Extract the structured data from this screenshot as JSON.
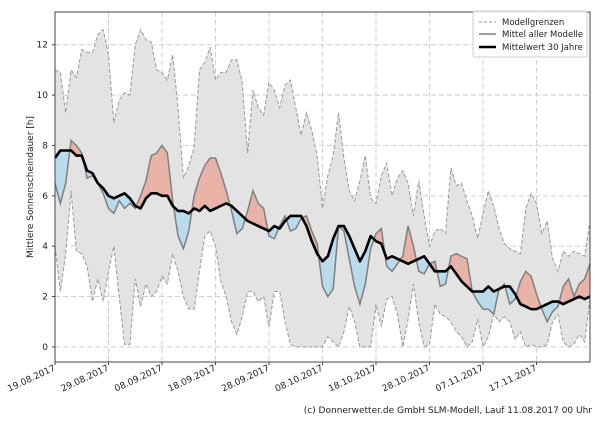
{
  "chart_data": {
    "type": "line",
    "title": "",
    "ylabel": "Mittlere Sonnenscheindauer [h]",
    "xlabel": "",
    "ylim": [
      -0.6,
      13.3
    ],
    "yticks": [
      0,
      2,
      4,
      6,
      8,
      10,
      12
    ],
    "grid": true,
    "legend_position": "top-right",
    "x_start": "19.08.2017",
    "x_days": 100,
    "xtick_labels": [
      "19.08.2017",
      "29.08.2017",
      "08.09.2017",
      "18.09.2017",
      "28.09.2017",
      "08.10.2017",
      "18.10.2017",
      "28.10.2017",
      "07.11.2017",
      "17.11.2017"
    ],
    "xtick_days": [
      0,
      10,
      20,
      30,
      40,
      50,
      60,
      70,
      80,
      90
    ],
    "legend": [
      {
        "key": "bounds",
        "label": "Modellgrenzen"
      },
      {
        "key": "model_mean",
        "label": "Mittel aller Modelle"
      },
      {
        "key": "climate_mean",
        "label": "Mittelwert 30 Jahre"
      }
    ],
    "series": [
      {
        "name": "Modellgrenzen oben",
        "days": [
          0,
          1,
          2,
          3,
          4,
          5,
          6,
          7,
          8,
          9,
          10,
          11,
          12,
          13,
          14,
          15,
          16,
          17,
          18,
          19,
          20,
          21,
          22,
          23,
          24,
          25,
          26,
          27,
          28,
          29,
          30,
          31,
          32,
          33,
          34,
          35,
          36,
          37,
          38,
          39,
          40,
          41,
          42,
          43,
          44,
          45,
          46,
          47,
          48,
          49,
          50,
          51,
          52,
          53,
          54,
          55,
          56,
          57,
          58,
          59,
          60,
          61,
          62,
          63,
          64,
          65,
          66,
          67,
          68,
          69,
          70,
          71,
          72,
          73,
          74,
          75,
          76,
          77,
          78,
          79,
          80,
          81,
          82,
          83,
          84,
          85,
          86,
          87,
          88,
          89,
          90,
          91,
          92,
          93,
          94,
          95,
          96,
          97,
          98,
          99,
          100
        ],
        "values": [
          11.0,
          10.9,
          9.3,
          11.0,
          10.7,
          11.8,
          11.7,
          11.7,
          12.4,
          12.6,
          11.6,
          8.9,
          9.8,
          10.1,
          10.0,
          12.0,
          12.6,
          12.2,
          12.1,
          11.0,
          10.9,
          10.6,
          11.6,
          9.5,
          6.7,
          7.2,
          7.9,
          11.0,
          11.3,
          11.9,
          10.6,
          10.9,
          10.9,
          11.4,
          11.4,
          10.5,
          7.7,
          10.2,
          9.5,
          9.2,
          10.5,
          10.2,
          9.5,
          10.4,
          10.6,
          9.5,
          8.4,
          9.3,
          8.6,
          7.6,
          5.5,
          6.8,
          7.6,
          9.3,
          7.5,
          6.2,
          5.8,
          6.6,
          7.6,
          5.9,
          5.7,
          6.8,
          7.3,
          6.0,
          6.7,
          7.0,
          6.5,
          5.2,
          6.6,
          5.2,
          4.0,
          4.6,
          4.7,
          4.5,
          7.1,
          6.4,
          6.5,
          5.8,
          5.2,
          4.3,
          5.3,
          6.2,
          5.6,
          4.7,
          4.1,
          3.9,
          3.8,
          3.7,
          5.5,
          6.1,
          5.7,
          4.5,
          5.0,
          3.5,
          3.0,
          3.8,
          3.6,
          3.8,
          3.7,
          3.6,
          5.0
        ]
      },
      {
        "name": "Modellgrenzen unten",
        "days": [
          0,
          1,
          2,
          3,
          4,
          5,
          6,
          7,
          8,
          9,
          10,
          11,
          12,
          13,
          14,
          15,
          16,
          17,
          18,
          19,
          20,
          21,
          22,
          23,
          24,
          25,
          26,
          27,
          28,
          29,
          30,
          31,
          32,
          33,
          34,
          35,
          36,
          37,
          38,
          39,
          40,
          41,
          42,
          43,
          44,
          45,
          46,
          47,
          48,
          49,
          50,
          51,
          52,
          53,
          54,
          55,
          56,
          57,
          58,
          59,
          60,
          61,
          62,
          63,
          64,
          65,
          66,
          67,
          68,
          69,
          70,
          71,
          72,
          73,
          74,
          75,
          76,
          77,
          78,
          79,
          80,
          81,
          82,
          83,
          84,
          85,
          86,
          87,
          88,
          89,
          90,
          91,
          92,
          93,
          94,
          95,
          96,
          97,
          98,
          99,
          100
        ],
        "values": [
          4.0,
          2.2,
          3.7,
          6.2,
          3.8,
          3.7,
          3.2,
          1.8,
          2.7,
          1.8,
          3.0,
          4.0,
          2.0,
          0.1,
          0.1,
          2.7,
          1.6,
          2.5,
          2.0,
          2.2,
          2.8,
          2.5,
          3.7,
          3.0,
          2.0,
          1.5,
          1.5,
          3.0,
          4.4,
          4.6,
          4.0,
          2.6,
          2.0,
          1.0,
          0.5,
          1.2,
          2.2,
          2.2,
          1.8,
          2.0,
          0.8,
          2.2,
          2.2,
          1.0,
          0.1,
          0.0,
          0.0,
          0.0,
          0.0,
          0.0,
          0.0,
          0.4,
          0.2,
          0.0,
          0.6,
          1.6,
          1.0,
          0.0,
          0.0,
          0.0,
          1.7,
          0.8,
          1.9,
          2.0,
          1.3,
          0.0,
          1.1,
          2.5,
          1.0,
          0.0,
          0.1,
          1.7,
          1.3,
          1.2,
          1.0,
          0.6,
          0.4,
          0.0,
          0.2,
          1.1,
          0.0,
          0.4,
          1.3,
          1.0,
          1.2,
          1.0,
          0.3,
          0.6,
          0.0,
          0.1,
          0.0,
          0.0,
          0.1,
          1.0,
          1.3,
          0.2,
          0.0,
          0.1,
          0.5,
          0.2,
          1.9
        ]
      },
      {
        "name": "Mittel aller Modelle",
        "days": [
          0,
          1,
          2,
          3,
          4,
          5,
          6,
          7,
          8,
          9,
          10,
          11,
          12,
          13,
          14,
          15,
          16,
          17,
          18,
          19,
          20,
          21,
          22,
          23,
          24,
          25,
          26,
          27,
          28,
          29,
          30,
          31,
          32,
          33,
          34,
          35,
          36,
          37,
          38,
          39,
          40,
          41,
          42,
          43,
          44,
          45,
          46,
          47,
          48,
          49,
          50,
          51,
          52,
          53,
          54,
          55,
          56,
          57,
          58,
          59,
          60,
          61,
          62,
          63,
          64,
          65,
          66,
          67,
          68,
          69,
          70,
          71,
          72,
          73,
          74,
          75,
          76,
          77,
          78,
          79,
          80,
          81,
          82,
          83,
          84,
          85,
          86,
          87,
          88,
          89,
          90,
          91,
          92,
          93,
          94,
          95,
          96,
          97,
          98,
          99,
          100
        ],
        "values": [
          6.5,
          5.7,
          6.5,
          8.2,
          8.0,
          7.7,
          6.7,
          6.8,
          6.5,
          6.1,
          5.5,
          5.3,
          5.8,
          5.5,
          5.7,
          5.5,
          6.0,
          6.6,
          7.6,
          7.7,
          8.0,
          7.7,
          5.8,
          4.4,
          3.9,
          4.6,
          6.0,
          6.7,
          7.2,
          7.5,
          7.5,
          6.9,
          6.2,
          5.4,
          4.5,
          4.7,
          5.4,
          6.2,
          5.7,
          5.5,
          4.4,
          4.3,
          4.8,
          5.2,
          4.6,
          4.7,
          5.1,
          5.2,
          4.6,
          4.1,
          2.4,
          2.0,
          2.3,
          4.8,
          4.6,
          3.5,
          2.4,
          1.7,
          2.5,
          3.9,
          4.5,
          4.7,
          3.2,
          3.0,
          3.3,
          3.6,
          4.8,
          4.0,
          3.0,
          2.9,
          3.3,
          3.4,
          2.4,
          2.5,
          3.6,
          3.7,
          3.6,
          3.5,
          2.2,
          1.8,
          1.5,
          1.5,
          1.3,
          2.3,
          2.5,
          1.7,
          1.9,
          2.6,
          3.0,
          2.8,
          2.1,
          1.5,
          1.0,
          1.4,
          1.6,
          2.4,
          2.7,
          2.0,
          2.5,
          2.7,
          3.3
        ]
      },
      {
        "name": "Mittelwert 30 Jahre",
        "days": [
          0,
          1,
          2,
          3,
          4,
          5,
          6,
          7,
          8,
          9,
          10,
          11,
          12,
          13,
          14,
          15,
          16,
          17,
          18,
          19,
          20,
          21,
          22,
          23,
          24,
          25,
          26,
          27,
          28,
          29,
          30,
          31,
          32,
          33,
          34,
          35,
          36,
          37,
          38,
          39,
          40,
          41,
          42,
          43,
          44,
          45,
          46,
          47,
          48,
          49,
          50,
          51,
          52,
          53,
          54,
          55,
          56,
          57,
          58,
          59,
          60,
          61,
          62,
          63,
          64,
          65,
          66,
          67,
          68,
          69,
          70,
          71,
          72,
          73,
          74,
          75,
          76,
          77,
          78,
          79,
          80,
          81,
          82,
          83,
          84,
          85,
          86,
          87,
          88,
          89,
          90,
          91,
          92,
          93,
          94,
          95,
          96,
          97,
          98,
          99,
          100
        ],
        "values": [
          7.5,
          7.8,
          7.8,
          7.8,
          7.6,
          7.6,
          7.0,
          6.9,
          6.5,
          6.3,
          6.0,
          5.9,
          6.0,
          6.1,
          5.9,
          5.6,
          5.5,
          5.9,
          6.1,
          6.1,
          6.0,
          6.0,
          5.6,
          5.4,
          5.4,
          5.3,
          5.5,
          5.4,
          5.6,
          5.4,
          5.5,
          5.6,
          5.7,
          5.6,
          5.4,
          5.2,
          5.0,
          4.9,
          4.8,
          4.7,
          4.6,
          4.8,
          4.7,
          5.0,
          5.2,
          5.2,
          5.2,
          4.8,
          4.2,
          3.7,
          3.4,
          3.6,
          4.3,
          4.8,
          4.8,
          4.4,
          3.9,
          3.4,
          3.8,
          4.4,
          4.2,
          4.1,
          3.5,
          3.6,
          3.5,
          3.4,
          3.3,
          3.4,
          3.5,
          3.6,
          3.3,
          3.0,
          3.0,
          3.0,
          3.2,
          2.9,
          2.6,
          2.4,
          2.2,
          2.2,
          2.2,
          2.4,
          2.2,
          2.3,
          2.4,
          2.4,
          2.1,
          1.7,
          1.6,
          1.5,
          1.5,
          1.6,
          1.7,
          1.8,
          1.8,
          1.7,
          1.8,
          1.9,
          2.0,
          1.9,
          2.0
        ]
      }
    ],
    "colors": {
      "band": "#e3e3e3",
      "bound_line": "#9a9a9a",
      "model_mean_line": "#7f7f7f",
      "climate_mean_line": "#000000",
      "above_fill": "#e8b2a6",
      "below_fill": "#b9dbec",
      "grid": "#cfcfcf"
    }
  },
  "footer": "(c) Donnerwetter.de GmbH SLM-Modell, Lauf 11.08.2017 00 Uhr"
}
